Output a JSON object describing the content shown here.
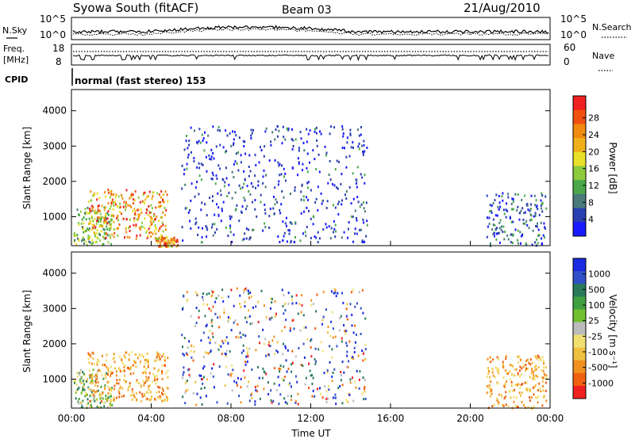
{
  "header": {
    "title": "Syowa South (fitACF)",
    "beam": "Beam 03",
    "date": "21/Aug/2010"
  },
  "summary_panels": {
    "nsky": {
      "left_label": "N.Sky",
      "right_label": "N.Search",
      "tick_top": "10^5",
      "tick_bottom": "10^0"
    },
    "freq": {
      "left_label_1": "Freq.",
      "left_label_2": "[MHz]",
      "right_label": "Nave",
      "left_ticks": [
        "18",
        "8"
      ],
      "right_ticks": [
        "60",
        "0"
      ]
    },
    "cpid": {
      "label": "CPID",
      "program": "normal (fast stereo) 153"
    }
  },
  "chart_data": [
    {
      "type": "heatmap",
      "panel": "power",
      "ylabel": "Slant Range [km]",
      "yticks": [
        "1000",
        "2000",
        "3000",
        "4000"
      ],
      "ylim": [
        180,
        4600
      ],
      "colorbar": {
        "label": "Power [dB]",
        "ticks": [
          "4",
          "8",
          "12",
          "16",
          "20",
          "24",
          "28"
        ],
        "colors": [
          "#1a1aff",
          "#2a3fb0",
          "#4a7a7a",
          "#4aa84a",
          "#8ccc3c",
          "#e8e02a",
          "#f0b01a",
          "#f08a10",
          "#f05010",
          "#f02020"
        ]
      },
      "regions": [
        {
          "t0": 0.1,
          "t1": 2.0,
          "r0": 220,
          "r1": 1300,
          "level": "low-green"
        },
        {
          "t0": 0.8,
          "t1": 4.8,
          "r0": 400,
          "r1": 1800,
          "level": "high-orange-red"
        },
        {
          "t0": 4.2,
          "t1": 5.3,
          "r0": 180,
          "r1": 450,
          "level": "high-orange-red"
        },
        {
          "t0": 5.5,
          "t1": 14.8,
          "r0": 300,
          "r1": 3600,
          "level": "low-blue"
        },
        {
          "t0": 20.8,
          "t1": 23.8,
          "r0": 200,
          "r1": 1700,
          "level": "low-blue-green"
        }
      ]
    },
    {
      "type": "heatmap",
      "panel": "velocity",
      "ylabel": "Slant Range [km]",
      "xlabel": "Time UT",
      "yticks": [
        "1000",
        "2000",
        "3000",
        "4000"
      ],
      "ylim": [
        180,
        4600
      ],
      "xticks": [
        "00:00",
        "04:00",
        "08:00",
        "12:00",
        "16:00",
        "20:00",
        "00:00"
      ],
      "xlim": [
        0,
        24
      ],
      "colorbar": {
        "label": "Velocity [m s⁻¹]",
        "ticks": [
          "1000",
          "500",
          "100",
          "25",
          "-25",
          "-100",
          "-500",
          "-1000"
        ],
        "colors": [
          "#1a2ae0",
          "#3050c8",
          "#2a7a5a",
          "#40a040",
          "#70c030",
          "#bcbcbc",
          "#f0e070",
          "#f0c040",
          "#f09020",
          "#f06010",
          "#f02020"
        ]
      },
      "regions": [
        {
          "t0": 0.1,
          "t1": 2.0,
          "r0": 220,
          "r1": 1300,
          "level": "mixed-green"
        },
        {
          "t0": 0.8,
          "t1": 4.8,
          "r0": 400,
          "r1": 1800,
          "level": "negative-orange"
        },
        {
          "t0": 5.5,
          "t1": 14.8,
          "r0": 300,
          "r1": 3600,
          "level": "mixed"
        },
        {
          "t0": 20.8,
          "t1": 23.8,
          "r0": 200,
          "r1": 1700,
          "level": "negative-orange"
        }
      ]
    }
  ]
}
